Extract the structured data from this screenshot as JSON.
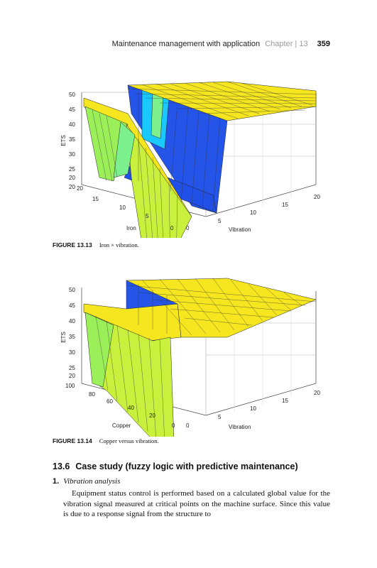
{
  "header": {
    "title": "Maintenance management with application",
    "chapter": "Chapter | 13",
    "page_number": "359"
  },
  "figures": [
    {
      "label": "FIGURE 13.13",
      "caption": "Iron × vibration.",
      "chart_data": {
        "type": "surface",
        "title": "",
        "zlabel": "ETS",
        "xlabel": "Iron",
        "ylabel": "Vibration",
        "zlim": [
          20,
          50
        ],
        "z_ticks": [
          "20",
          "25",
          "30",
          "35",
          "40",
          "45",
          "50"
        ],
        "x_ticks": [
          "0",
          "5",
          "10",
          "15",
          "20"
        ],
        "y_ticks": [
          "0",
          "5",
          "10",
          "15",
          "20"
        ],
        "grid": true,
        "colormap": [
          "#2050e6",
          "#19c8ff",
          "#7cf08c",
          "#c8f03c",
          "#f5e620"
        ],
        "regions": [
          {
            "description_level": "plateau",
            "ets": 49,
            "color": "#f5e620"
          },
          {
            "description_level": "valley",
            "ets": 21,
            "color": "#2050e6"
          }
        ]
      }
    },
    {
      "label": "FIGURE 13.14",
      "caption": "Copper versus vibration.",
      "chart_data": {
        "type": "surface",
        "title": "",
        "zlabel": "ETS",
        "xlabel": "Copper",
        "ylabel": "Vibration",
        "zlim": [
          20,
          50
        ],
        "z_ticks": [
          "20",
          "25",
          "30",
          "35",
          "40",
          "45",
          "50"
        ],
        "x_ticks": [
          "0",
          "20",
          "40",
          "60",
          "80",
          "100"
        ],
        "y_ticks": [
          "0",
          "5",
          "10",
          "15",
          "20"
        ],
        "grid": true,
        "colormap": [
          "#2050e6",
          "#19c8ff",
          "#7cf08c",
          "#c8f03c",
          "#f5e620"
        ],
        "regions": [
          {
            "description_level": "plateau",
            "ets": 49,
            "color": "#f5e620"
          },
          {
            "description_level": "wall",
            "ets": 21,
            "color": "#9bf05a"
          }
        ]
      }
    }
  ],
  "section": {
    "number": "13.6",
    "title": "Case study (fuzzy logic with predictive maintenance)"
  },
  "list": {
    "number": "1.",
    "text": "Vibration analysis"
  },
  "paragraph": "Equipment status control is performed based on a calculated global value for the vibration signal measured at critical points on the machine surface. Since this value is due to a response signal from the structure to"
}
